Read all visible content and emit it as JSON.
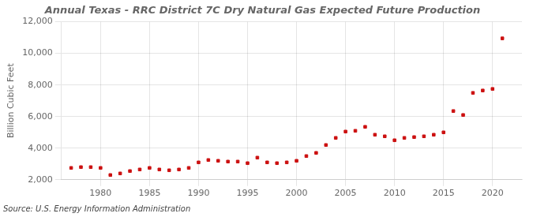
{
  "chart_data": {
    "type": "scatter",
    "title": "Annual Texas - RRC District 7C Dry Natural Gas Expected Future Production",
    "ylabel": "Billion Cubic Feet",
    "annotations": [
      "Source: U.S. Energy Information Administration"
    ],
    "x": [
      1977,
      1978,
      1979,
      1980,
      1981,
      1982,
      1983,
      1984,
      1985,
      1986,
      1987,
      1988,
      1989,
      1990,
      1991,
      1992,
      1993,
      1994,
      1995,
      1996,
      1997,
      1998,
      1999,
      2000,
      2001,
      2002,
      2003,
      2004,
      2005,
      2006,
      2007,
      2008,
      2009,
      2010,
      2011,
      2012,
      2013,
      2014,
      2015,
      2016,
      2017,
      2018,
      2019,
      2020,
      2021
    ],
    "values": [
      2750,
      2800,
      2800,
      2750,
      2300,
      2400,
      2550,
      2650,
      2750,
      2650,
      2600,
      2650,
      2750,
      3100,
      3250,
      3200,
      3150,
      3150,
      3050,
      3400,
      3100,
      3050,
      3100,
      3200,
      3500,
      3700,
      4200,
      4650,
      5050,
      5100,
      5350,
      4850,
      4750,
      4500,
      4650,
      4700,
      4750,
      4850,
      5000,
      6350,
      6100,
      7500,
      7650,
      7750,
      10950
    ],
    "color": "#cc1111",
    "marker": "square",
    "xlim": [
      1976,
      2023
    ],
    "xticks": [
      1980,
      1985,
      1990,
      1995,
      2000,
      2005,
      2010,
      2015,
      2020
    ],
    "ylim": [
      2000,
      12000
    ],
    "yticks": [
      {
        "value": 2000,
        "label": "2,000"
      },
      {
        "value": 4000,
        "label": "4,000"
      },
      {
        "value": 6000,
        "label": "6,000"
      },
      {
        "value": 8000,
        "label": "8,000"
      },
      {
        "value": 10000,
        "label": "10,000"
      },
      {
        "value": 12000,
        "label": "12,000"
      }
    ],
    "grid": true
  }
}
